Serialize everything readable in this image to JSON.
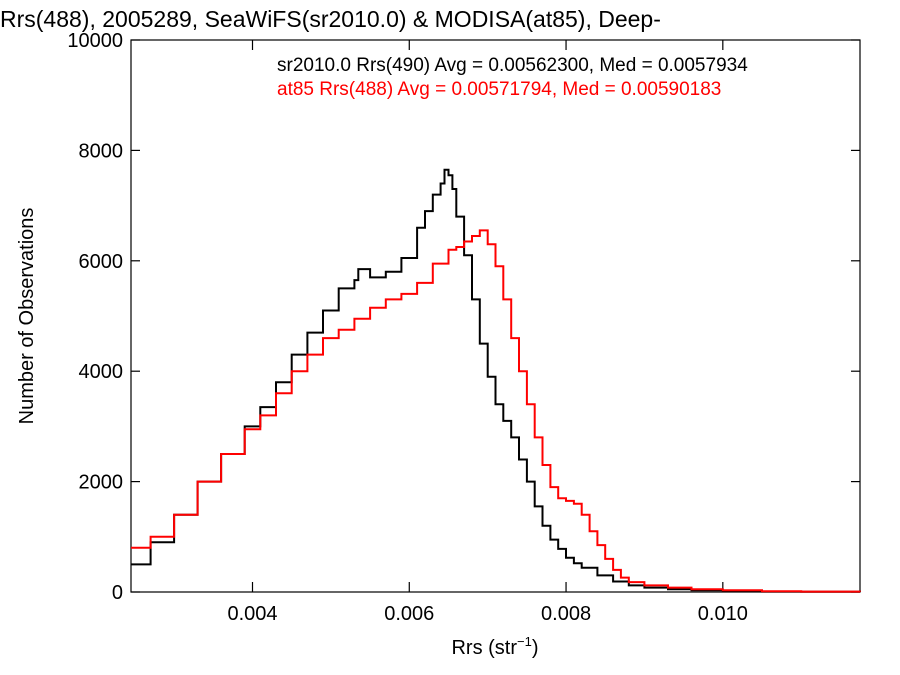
{
  "chart_data": {
    "type": "line",
    "title": "Rrs(488), 2005289, SeaWiFS(sr2010.0) & MODISA(at85), Deep-",
    "xlabel_main": "Rrs (str",
    "xlabel_sup": "−1",
    "xlabel_end": ")",
    "ylabel": "Number of Observations",
    "xlim": [
      0.00245,
      0.01175
    ],
    "ylim": [
      0,
      10000
    ],
    "x_ticks": [
      0.004,
      0.006,
      0.008,
      0.01
    ],
    "x_tick_labels": [
      "0.004",
      "0.006",
      "0.008",
      "0.010"
    ],
    "y_ticks": [
      0,
      2000,
      4000,
      6000,
      8000,
      10000
    ],
    "y_tick_labels": [
      "0",
      "2000",
      "4000",
      "6000",
      "8000",
      "10000"
    ],
    "grid": false,
    "legend_position": "top-right",
    "annotations": [
      "sr2010.0 Rrs(490) Avg = 0.00562300, Med = 0.0057934",
      "at85 Rrs(488) Avg = 0.00571794, Med = 0.00590183"
    ],
    "series": [
      {
        "color": "#000000",
        "x": [
          0.00245,
          0.0027,
          0.003,
          0.0033,
          0.0036,
          0.0039,
          0.0041,
          0.0043,
          0.0045,
          0.0047,
          0.0049,
          0.0051,
          0.0053,
          0.00535,
          0.0055,
          0.0057,
          0.0059,
          0.0061,
          0.0062,
          0.0063,
          0.0064,
          0.00645,
          0.0065,
          0.00655,
          0.0066,
          0.0067,
          0.0068,
          0.0069,
          0.007,
          0.0071,
          0.0072,
          0.0073,
          0.0074,
          0.0075,
          0.0076,
          0.0077,
          0.0078,
          0.0079,
          0.008,
          0.0081,
          0.0082,
          0.0084,
          0.0086,
          0.0088,
          0.009,
          0.0093,
          0.0096,
          0.01,
          0.0105,
          0.011,
          0.01175
        ],
        "y": [
          500,
          900,
          1400,
          2000,
          2500,
          3000,
          3350,
          3800,
          4300,
          4700,
          5100,
          5500,
          5650,
          5850,
          5700,
          5800,
          6050,
          6600,
          6900,
          7200,
          7400,
          7650,
          7550,
          7300,
          6800,
          6100,
          5300,
          4500,
          3900,
          3400,
          3100,
          2800,
          2400,
          2000,
          1550,
          1200,
          950,
          780,
          620,
          520,
          440,
          300,
          190,
          120,
          80,
          50,
          30,
          15,
          8,
          4,
          2
        ]
      },
      {
        "color": "#ff0000",
        "x": [
          0.00245,
          0.0027,
          0.003,
          0.0033,
          0.0036,
          0.0039,
          0.0041,
          0.0043,
          0.0045,
          0.0047,
          0.0049,
          0.0051,
          0.0053,
          0.0055,
          0.0057,
          0.0059,
          0.0061,
          0.0063,
          0.0065,
          0.0066,
          0.0067,
          0.0068,
          0.0069,
          0.007,
          0.0071,
          0.0072,
          0.0073,
          0.0074,
          0.0075,
          0.0076,
          0.0077,
          0.0078,
          0.0079,
          0.008,
          0.0081,
          0.0082,
          0.0083,
          0.0084,
          0.0085,
          0.0086,
          0.0087,
          0.0088,
          0.009,
          0.0093,
          0.0096,
          0.01,
          0.0105,
          0.011,
          0.01175
        ],
        "y": [
          800,
          1000,
          1400,
          2000,
          2500,
          2950,
          3200,
          3600,
          4000,
          4300,
          4600,
          4750,
          4950,
          5150,
          5300,
          5400,
          5600,
          5950,
          6200,
          6250,
          6350,
          6450,
          6550,
          6300,
          5900,
          5300,
          4600,
          4000,
          3400,
          2800,
          2300,
          1900,
          1700,
          1650,
          1600,
          1400,
          1100,
          850,
          600,
          400,
          260,
          180,
          120,
          80,
          50,
          30,
          15,
          8,
          4
        ]
      }
    ]
  }
}
